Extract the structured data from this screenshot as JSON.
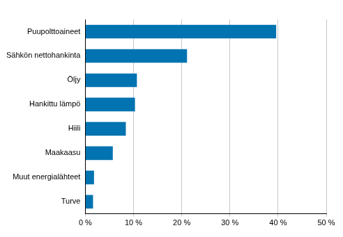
{
  "chart_data": {
    "type": "bar",
    "orientation": "horizontal",
    "categories": [
      "Puupolttoaineet",
      "Sähkön nettohankinta",
      "Öljy",
      "Hankittu lämpö",
      "Hiili",
      "Maakaasu",
      "Muut energialähteet",
      "Turve"
    ],
    "values": [
      39.6,
      21.1,
      10.7,
      10.3,
      8.4,
      5.7,
      1.8,
      1.6
    ],
    "color": "#0073b0",
    "xlim": [
      0,
      50
    ],
    "xticks": [
      {
        "value": 0,
        "label": "0 %"
      },
      {
        "value": 10,
        "label": "10 %"
      },
      {
        "value": 20,
        "label": "20 %"
      },
      {
        "value": 30,
        "label": "30 %"
      },
      {
        "value": 40,
        "label": "40 %"
      },
      {
        "value": 50,
        "label": "50 %"
      }
    ],
    "grid": true
  }
}
